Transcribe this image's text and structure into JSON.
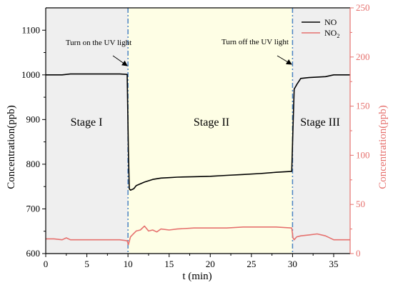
{
  "chart_data": {
    "type": "line",
    "xlabel": "t (min)",
    "ylabel_left": "Concentration(ppb)",
    "ylabel_right": "Concentration(ppb)",
    "xlim": [
      0,
      37
    ],
    "ylim_left": [
      600,
      1150
    ],
    "ylim_right": [
      0,
      250
    ],
    "x_ticks": [
      "0",
      "5",
      "10",
      "15",
      "20",
      "25",
      "30",
      "35"
    ],
    "y_left_ticks": [
      "600",
      "700",
      "800",
      "900",
      "1000",
      "1100"
    ],
    "y_right_ticks": [
      "0",
      "50",
      "100",
      "150",
      "200",
      "250"
    ],
    "grid": false,
    "legend_position": "top-right",
    "regions": [
      {
        "label": "Stage I",
        "x": [
          0,
          10
        ],
        "color": "#efefef"
      },
      {
        "label": "Stage II",
        "x": [
          10,
          30
        ],
        "color": "#fefee5"
      },
      {
        "label": "Stage III",
        "x": [
          30,
          37
        ],
        "color": "#efefef"
      }
    ],
    "vlines": [
      10,
      30
    ],
    "vline_color": "#4a82c4",
    "annotations": [
      {
        "text": "Turn on the UV light",
        "x": 10,
        "y": 1000
      },
      {
        "text": "Turn off the UV light",
        "x": 30,
        "y": 1000
      }
    ],
    "series": [
      {
        "name": "NO",
        "axis": "left",
        "color": "#000000",
        "x": [
          0,
          2,
          3,
          5,
          7,
          9,
          9.9,
          10.05,
          10.15,
          10.3,
          10.7,
          11,
          12,
          13,
          14,
          15,
          16,
          18,
          20,
          22,
          24,
          26,
          28,
          29.9,
          30.05,
          30.2,
          30.5,
          31,
          32,
          34,
          35,
          37
        ],
        "y": [
          1000,
          1000,
          1002,
          1002,
          1002,
          1002,
          1001,
          830,
          745,
          742,
          745,
          752,
          760,
          766,
          769,
          770,
          771,
          772,
          773,
          775,
          777,
          779,
          782,
          784,
          880,
          968,
          978,
          992,
          994,
          996,
          1000,
          1000
        ]
      },
      {
        "name": "NO2",
        "axis": "right",
        "color": "#e6716e",
        "x": [
          0,
          1,
          2,
          2.5,
          3,
          5,
          7,
          9,
          9.9,
          10.05,
          10.3,
          11,
          11.5,
          12,
          12.5,
          13,
          13.5,
          14,
          15,
          16,
          18,
          20,
          22,
          24,
          26,
          28,
          29.9,
          30.05,
          30.2,
          30.5,
          31,
          32,
          33,
          34,
          35,
          37
        ],
        "y": [
          15,
          15,
          14,
          16,
          14,
          14,
          14,
          14,
          13,
          9,
          17,
          23,
          24,
          28,
          23,
          24,
          22,
          25,
          24,
          25,
          26,
          26,
          26,
          27,
          27,
          27,
          26,
          16,
          14,
          17,
          18,
          19,
          20,
          18,
          14,
          14
        ]
      }
    ]
  }
}
